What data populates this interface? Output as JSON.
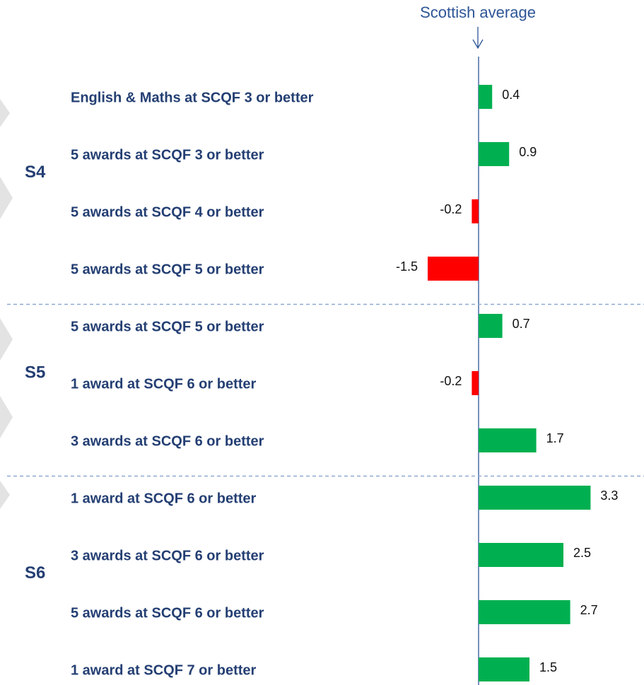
{
  "chart_data": {
    "type": "bar",
    "orientation": "horizontal",
    "annotation": "Scottish average",
    "xlim": [
      -2,
      4.5
    ],
    "positive_color": "#00b050",
    "negative_color": "#ff0000",
    "groups": [
      {
        "name": "S4",
        "categories": [
          "English & Maths at SCQF 3 or better",
          "5 awards at SCQF 3 or better",
          "5 awards at SCQF 4 or better",
          "5 awards at SCQF 5 or better"
        ],
        "values": [
          0.4,
          0.9,
          -0.2,
          -1.5
        ]
      },
      {
        "name": "S5",
        "categories": [
          "5 awards at SCQF 5 or better",
          "1 award at SCQF 6 or better",
          "3 awards at SCQF 6 or better"
        ],
        "values": [
          0.7,
          -0.2,
          1.7
        ]
      },
      {
        "name": "S6",
        "categories": [
          "1 award at SCQF 6 or better",
          "3 awards at SCQF 6 or better",
          "5 awards at SCQF 6 or better",
          "1 award at SCQF 7 or better"
        ],
        "values": [
          3.3,
          2.5,
          2.7,
          1.5
        ]
      }
    ]
  }
}
